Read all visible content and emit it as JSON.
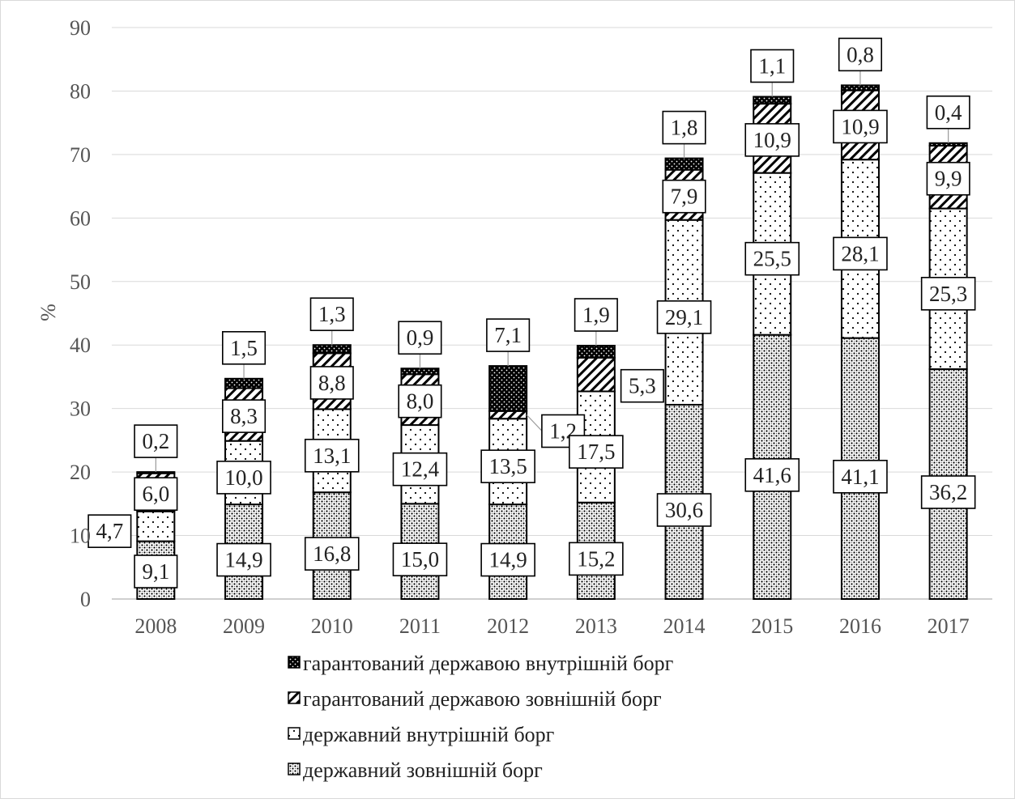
{
  "chart_data": {
    "type": "bar",
    "stacked": true,
    "title": "",
    "xlabel": "",
    "ylabel": "%",
    "ylim": [
      0,
      90
    ],
    "ytick_step": 10,
    "grid": true,
    "legend_position": "bottom",
    "categories": [
      "2008",
      "2009",
      "2010",
      "2011",
      "2012",
      "2013",
      "2014",
      "2015",
      "2016",
      "2017"
    ],
    "series": [
      {
        "name": "державний зовнішній борг",
        "pattern": "crosshatch-dots",
        "values": [
          9.1,
          14.9,
          16.8,
          15.0,
          14.9,
          15.2,
          30.6,
          41.6,
          41.1,
          36.2
        ],
        "labels": [
          "9,1",
          "14,9",
          "16,8",
          "15,0",
          "14,9",
          "15,2",
          "30,6",
          "41,6",
          "41,1",
          "36,2"
        ]
      },
      {
        "name": "державний внутрішній борг",
        "pattern": "sparse-dots",
        "values": [
          4.7,
          10.0,
          13.1,
          12.4,
          13.5,
          17.5,
          29.1,
          25.5,
          28.1,
          25.3
        ],
        "labels": [
          "4,7",
          "10,0",
          "13,1",
          "12,4",
          "13,5",
          "17,5",
          "29,1",
          "25,5",
          "28,1",
          "25,3"
        ]
      },
      {
        "name": "гарантований державою зовнішній борг",
        "pattern": "diagonal-hatch",
        "values": [
          6.0,
          8.3,
          8.8,
          8.0,
          1.2,
          5.3,
          7.9,
          10.9,
          10.9,
          9.9
        ],
        "labels": [
          "6,0",
          "8,3",
          "8,8",
          "8,0",
          "1,2",
          "5,3",
          "7,9",
          "10,9",
          "10,9",
          "9,9"
        ]
      },
      {
        "name": "гарантований державою внутрішній борг",
        "pattern": "dense-black",
        "values": [
          0.2,
          1.5,
          1.3,
          0.9,
          7.1,
          1.9,
          1.8,
          1.1,
          0.8,
          0.4
        ],
        "labels": [
          "0,2",
          "1,5",
          "1,3",
          "0,9",
          "7,1",
          "1,9",
          "1,8",
          "1,1",
          "0,8",
          "0,4"
        ]
      }
    ],
    "legend_order": [
      3,
      2,
      1,
      0
    ],
    "colors": {
      "border": "#000000",
      "grid": "#d9d9d9",
      "axis_text": "#595959"
    }
  }
}
